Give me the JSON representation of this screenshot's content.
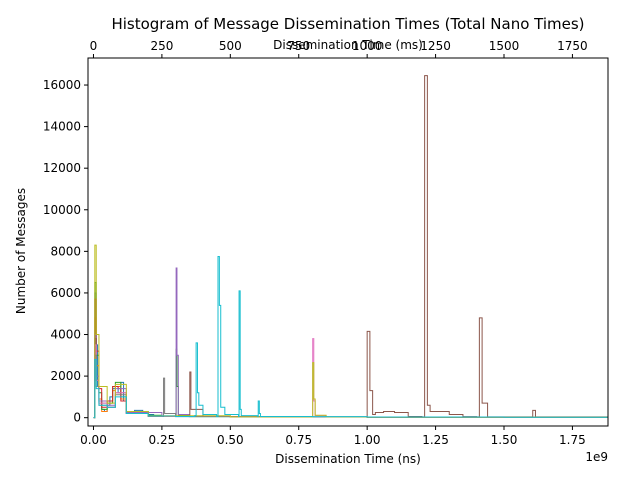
{
  "chart_data": {
    "type": "line",
    "style": "step-histogram",
    "title": "Histogram of Message Dissemination Times (Total Nano Times)",
    "xlabel": "Dissemination Time (ns)",
    "x_offset_text": "1e9",
    "ylabel": "Number of Messages",
    "secondary_xlabel": "Dissemination Time (ms)",
    "xlim": [
      -0.02,
      1.88
    ],
    "ylim": [
      -400,
      17300
    ],
    "x_ticks": [
      {
        "value": 0.0,
        "label": "0.00"
      },
      {
        "value": 0.25,
        "label": "0.25"
      },
      {
        "value": 0.5,
        "label": "0.50"
      },
      {
        "value": 0.75,
        "label": "0.75"
      },
      {
        "value": 1.0,
        "label": "1.00"
      },
      {
        "value": 1.25,
        "label": "1.25"
      },
      {
        "value": 1.5,
        "label": "1.50"
      },
      {
        "value": 1.75,
        "label": "1.75"
      }
    ],
    "secondary_x_ticks": [
      {
        "value": 0,
        "label": "0"
      },
      {
        "value": 250,
        "label": "250"
      },
      {
        "value": 500,
        "label": "500"
      },
      {
        "value": 750,
        "label": "750"
      },
      {
        "value": 1000,
        "label": "1000"
      },
      {
        "value": 1250,
        "label": "1250"
      },
      {
        "value": 1500,
        "label": "1500"
      },
      {
        "value": 1750,
        "label": "1750"
      }
    ],
    "y_ticks": [
      {
        "value": 0,
        "label": "0"
      },
      {
        "value": 2000,
        "label": "2000"
      },
      {
        "value": 4000,
        "label": "4000"
      },
      {
        "value": 6000,
        "label": "6000"
      },
      {
        "value": 8000,
        "label": "8000"
      },
      {
        "value": 10000,
        "label": "10000"
      },
      {
        "value": 12000,
        "label": "12000"
      },
      {
        "value": 14000,
        "label": "14000"
      },
      {
        "value": 16000,
        "label": "16000"
      }
    ],
    "grid": false,
    "legend": "none",
    "series": [
      {
        "color": "#1f77b4",
        "x": [
          0.0,
          0.005,
          0.01,
          0.015,
          0.02,
          0.03,
          0.04,
          0.05,
          0.06,
          0.07,
          0.08,
          0.09,
          0.1,
          0.11,
          0.12,
          0.15,
          0.18,
          0.2,
          0.22,
          0.3,
          0.5,
          1.0,
          1.5,
          1.88
        ],
        "y": [
          0,
          6000,
          3500,
          1500,
          800,
          400,
          300,
          600,
          1000,
          1400,
          1500,
          1200,
          1700,
          800,
          250,
          350,
          300,
          150,
          80,
          50,
          30,
          20,
          10,
          10
        ]
      },
      {
        "color": "#ff7f0e",
        "x": [
          0.0,
          0.005,
          0.01,
          0.02,
          0.03,
          0.05,
          0.07,
          0.08,
          0.1,
          0.12,
          0.2,
          0.5,
          1.0,
          1.88
        ],
        "y": [
          0,
          4800,
          2500,
          900,
          300,
          700,
          1300,
          1500,
          900,
          250,
          60,
          30,
          20,
          10
        ]
      },
      {
        "color": "#2ca02c",
        "x": [
          0.0,
          0.005,
          0.01,
          0.02,
          0.03,
          0.05,
          0.07,
          0.08,
          0.1,
          0.12,
          0.2,
          0.25,
          0.3,
          0.302,
          0.305,
          0.31,
          0.35,
          0.5,
          1.0,
          1.88
        ],
        "y": [
          0,
          6500,
          3000,
          1200,
          400,
          700,
          1500,
          1700,
          1000,
          300,
          120,
          80,
          100,
          3300,
          1500,
          120,
          50,
          30,
          20,
          10
        ]
      },
      {
        "color": "#d62728",
        "x": [
          0.0,
          0.005,
          0.01,
          0.02,
          0.03,
          0.05,
          0.07,
          0.09,
          0.1,
          0.12,
          0.2,
          0.5,
          1.0,
          1.88
        ],
        "y": [
          0,
          5700,
          3200,
          1400,
          500,
          800,
          1500,
          1400,
          800,
          250,
          80,
          30,
          20,
          10
        ]
      },
      {
        "color": "#9467bd",
        "x": [
          0.0,
          0.005,
          0.01,
          0.02,
          0.05,
          0.08,
          0.12,
          0.25,
          0.3,
          0.302,
          0.305,
          0.31,
          0.35,
          0.5,
          1.0,
          1.88
        ],
        "y": [
          0,
          4000,
          2000,
          800,
          600,
          1400,
          250,
          80,
          90,
          7200,
          3000,
          150,
          60,
          30,
          20,
          10
        ]
      },
      {
        "color": "#8c564b",
        "x": [
          0.0,
          0.005,
          0.01,
          0.02,
          0.05,
          0.08,
          0.12,
          0.2,
          0.35,
          0.352,
          0.356,
          0.4,
          0.8,
          0.99,
          1.0,
          1.01,
          1.02,
          1.03,
          1.06,
          1.1,
          1.15,
          1.2,
          1.21,
          1.22,
          1.23,
          1.26,
          1.3,
          1.35,
          1.4,
          1.41,
          1.42,
          1.44,
          1.6,
          1.605,
          1.615,
          1.88
        ],
        "y": [
          0,
          3800,
          1800,
          700,
          500,
          1200,
          200,
          80,
          60,
          2200,
          400,
          60,
          40,
          40,
          4150,
          1300,
          150,
          250,
          300,
          250,
          60,
          40,
          16450,
          600,
          300,
          300,
          150,
          50,
          40,
          4800,
          700,
          40,
          40,
          350,
          40,
          40
        ]
      },
      {
        "color": "#e377c2",
        "x": [
          0.0,
          0.005,
          0.01,
          0.02,
          0.05,
          0.08,
          0.12,
          0.2,
          0.5,
          0.8,
          0.801,
          0.805,
          0.81,
          0.85,
          1.0,
          1.88
        ],
        "y": [
          0,
          3500,
          1800,
          700,
          500,
          1200,
          200,
          70,
          40,
          60,
          3800,
          800,
          100,
          40,
          20,
          10
        ]
      },
      {
        "color": "#7f7f7f",
        "x": [
          0.0,
          0.005,
          0.01,
          0.02,
          0.05,
          0.08,
          0.12,
          0.2,
          0.254,
          0.256,
          0.26,
          0.3,
          0.5,
          1.0,
          1.88
        ],
        "y": [
          0,
          3000,
          1500,
          600,
          500,
          1100,
          200,
          70,
          60,
          1900,
          200,
          60,
          30,
          20,
          10
        ]
      },
      {
        "color": "#bcbd22",
        "x": [
          0.0,
          0.005,
          0.01,
          0.02,
          0.05,
          0.08,
          0.12,
          0.2,
          0.5,
          0.8,
          0.801,
          0.805,
          0.81,
          0.85,
          1.0,
          1.88
        ],
        "y": [
          0,
          8300,
          4000,
          1500,
          700,
          1600,
          300,
          90,
          40,
          60,
          2650,
          900,
          120,
          40,
          20,
          10
        ]
      },
      {
        "color": "#17becf",
        "x": [
          0.0,
          0.005,
          0.01,
          0.02,
          0.05,
          0.08,
          0.12,
          0.2,
          0.3,
          0.37,
          0.375,
          0.38,
          0.385,
          0.4,
          0.45,
          0.455,
          0.46,
          0.465,
          0.48,
          0.53,
          0.532,
          0.536,
          0.54,
          0.6,
          0.602,
          0.606,
          0.61,
          0.8,
          1.0,
          1.5,
          1.88
        ],
        "y": [
          0,
          2800,
          1400,
          600,
          500,
          1000,
          200,
          80,
          60,
          100,
          3600,
          1200,
          600,
          150,
          60,
          7750,
          5400,
          500,
          150,
          60,
          6100,
          400,
          100,
          60,
          800,
          200,
          60,
          50,
          30,
          20,
          20
        ]
      }
    ]
  }
}
